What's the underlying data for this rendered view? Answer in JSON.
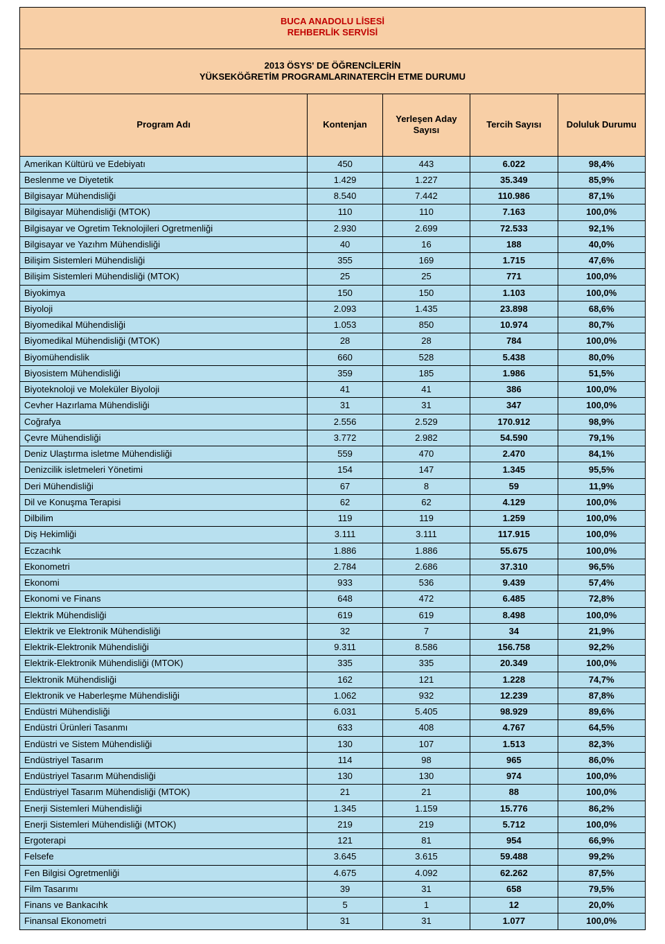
{
  "colors": {
    "header_bg": "#f8cfa6",
    "row_bg": "#b8e0ef",
    "text": "#000000",
    "accent_text": "#c00000",
    "border": "#000000"
  },
  "title_line1": "BUCA ANADOLU LİSESİ",
  "title_line2": "REHBERLİK SERVİSİ",
  "subtitle_line1": "2013 ÖSYS' DE ÖĞRENCİLERİN",
  "subtitle_line2": "YÜKSEKÖĞRETİM PROGRAMLARINATERCİH ETME DURUMU",
  "columns": [
    "Program Adı",
    "Kontenjan",
    "Yerleşen Aday Sayısı",
    "Tercih Sayısı",
    "Doluluk Durumu"
  ],
  "rows": [
    [
      "Amerikan Kültürü ve Edebiyatı",
      "450",
      "443",
      "6.022",
      "98,4%"
    ],
    [
      "Beslenme ve Diyetetik",
      "1.429",
      "1.227",
      "35.349",
      "85,9%"
    ],
    [
      "Bilgisayar Mühendisliği",
      "8.540",
      "7.442",
      "110.986",
      "87,1%"
    ],
    [
      "Bilgisayar Mühendisliği (MTOK)",
      "110",
      "110",
      "7.163",
      "100,0%"
    ],
    [
      "Bilgisayar ve Ogretim Teknolojileri Ogretmenliği",
      "2.930",
      "2.699",
      "72.533",
      "92,1%"
    ],
    [
      "Bilgisayar ve Yazıhm Mühendisliği",
      "40",
      "16",
      "188",
      "40,0%"
    ],
    [
      "Bilişim Sistemleri Mühendisliği",
      "355",
      "169",
      "1.715",
      "47,6%"
    ],
    [
      "Bilişim Sistemleri Mühendisliği (MTOK)",
      "25",
      "25",
      "771",
      "100,0%"
    ],
    [
      "Biyokimya",
      "150",
      "150",
      "1.103",
      "100,0%"
    ],
    [
      "Biyoloji",
      "2.093",
      "1.435",
      "23.898",
      "68,6%"
    ],
    [
      "Biyomedikal Mühendisliği",
      "1.053",
      "850",
      "10.974",
      "80,7%"
    ],
    [
      "Biyomedikal Mühendisliği (MTOK)",
      "28",
      "28",
      "784",
      "100,0%"
    ],
    [
      "Biyomühendislik",
      "660",
      "528",
      "5.438",
      "80,0%"
    ],
    [
      "Biyosistem Mühendisliği",
      "359",
      "185",
      "1.986",
      "51,5%"
    ],
    [
      "Biyoteknoloji ve Moleküler Biyoloji",
      "41",
      "41",
      "386",
      "100,0%"
    ],
    [
      "Cevher Hazırlama Mühendisliği",
      "31",
      "31",
      "347",
      "100,0%"
    ],
    [
      "Coğrafya",
      "2.556",
      "2.529",
      "170.912",
      "98,9%"
    ],
    [
      "Çevre Mühendisliği",
      "3.772",
      "2.982",
      "54.590",
      "79,1%"
    ],
    [
      "Deniz Ulaştırma isletme Mühendisliği",
      "559",
      "470",
      "2.470",
      "84,1%"
    ],
    [
      "Denizcilik isletmeleri Yönetimi",
      "154",
      "147",
      "1.345",
      "95,5%"
    ],
    [
      "Deri Mühendisliği",
      "67",
      "8",
      "59",
      "11,9%"
    ],
    [
      "Dil ve Konuşma Terapisi",
      "62",
      "62",
      "4.129",
      "100,0%"
    ],
    [
      "Dilbilim",
      "119",
      "119",
      "1.259",
      "100,0%"
    ],
    [
      "Diş Hekimliği",
      "3.111",
      "3.111",
      "117.915",
      "100,0%"
    ],
    [
      "Eczacıhk",
      "1.886",
      "1.886",
      "55.675",
      "100,0%"
    ],
    [
      "Ekonometri",
      "2.784",
      "2.686",
      "37.310",
      "96,5%"
    ],
    [
      "Ekonomi",
      "933",
      "536",
      "9.439",
      "57,4%"
    ],
    [
      "Ekonomi ve Finans",
      "648",
      "472",
      "6.485",
      "72,8%"
    ],
    [
      "Elektrik Mühendisliği",
      "619",
      "619",
      "8.498",
      "100,0%"
    ],
    [
      "Elektrik ve Elektronik Mühendisliği",
      "32",
      "7",
      "34",
      "21,9%"
    ],
    [
      "Elektrik-Elektronik Mühendisliği",
      "9.311",
      "8.586",
      "156.758",
      "92,2%"
    ],
    [
      "Elektrik-Elektronik Mühendisliği (MTOK)",
      "335",
      "335",
      "20.349",
      "100,0%"
    ],
    [
      "Elektronik Mühendisliği",
      "162",
      "121",
      "1.228",
      "74,7%"
    ],
    [
      "Elektronik ve Haberleşme Mühendisliği",
      "1.062",
      "932",
      "12.239",
      "87,8%"
    ],
    [
      "Endüstri Mühendisliği",
      "6.031",
      "5.405",
      "98.929",
      "89,6%"
    ],
    [
      "Endüstri Ürünleri Tasanmı",
      "633",
      "408",
      "4.767",
      "64,5%"
    ],
    [
      "Endüstri ve Sistem Mühendisliği",
      "130",
      "107",
      "1.513",
      "82,3%"
    ],
    [
      "Endüstriyel Tasarım",
      "114",
      "98",
      "965",
      "86,0%"
    ],
    [
      "Endüstriyel Tasarım Mühendisliği",
      "130",
      "130",
      "974",
      "100,0%"
    ],
    [
      "Endüstriyel Tasarım Mühendisliği (MTOK)",
      "21",
      "21",
      "88",
      "100,0%"
    ],
    [
      "Enerji Sistemleri Mühendisliği",
      "1.345",
      "1.159",
      "15.776",
      "86,2%"
    ],
    [
      "Enerji Sistemleri Mühendisliği (MTOK)",
      "219",
      "219",
      "5.712",
      "100,0%"
    ],
    [
      "Ergoterapi",
      "121",
      "81",
      "954",
      "66,9%"
    ],
    [
      "Felsefe",
      "3.645",
      "3.615",
      "59.488",
      "99,2%"
    ],
    [
      "Fen Bilgisi Ogretmenliği",
      "4.675",
      "4.092",
      "62.262",
      "87,5%"
    ],
    [
      "Film Tasarımı",
      "39",
      "31",
      "658",
      "79,5%"
    ],
    [
      "Finans ve Bankacıhk",
      "5",
      "1",
      "12",
      "20,0%"
    ],
    [
      "Finansal Ekonometri",
      "31",
      "31",
      "1.077",
      "100,0%"
    ]
  ]
}
